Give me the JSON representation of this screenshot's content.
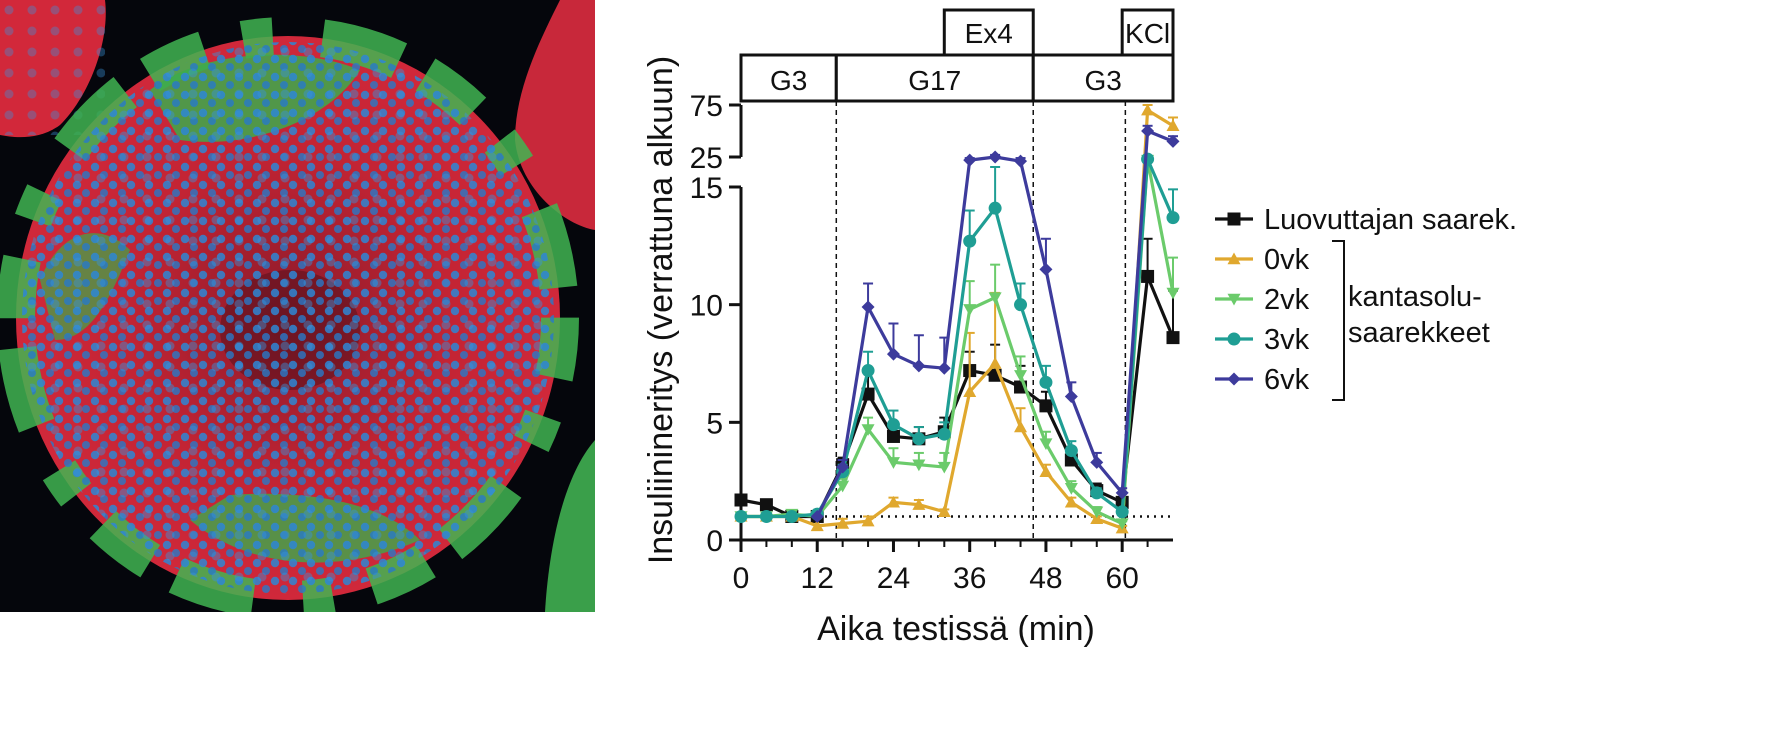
{
  "figure": {
    "left_image": {
      "description_name": "islet-immunofluorescence",
      "colors": {
        "background": "#05060c",
        "red": "#e8262e",
        "green": "#3fbf4e",
        "blue": "#2a7fd0"
      }
    }
  },
  "chart_data": {
    "type": "line",
    "title": "",
    "xlabel": "Aika testissä (min)",
    "ylabel": "Insuliinineritys (verrattuna alkuun)",
    "xlim": [
      0,
      68
    ],
    "xticks": [
      0,
      12,
      24,
      36,
      48,
      60
    ],
    "ylim_lower": [
      0,
      15
    ],
    "yticks_lower": [
      0,
      5,
      10,
      15
    ],
    "ylim_upper": [
      15,
      80
    ],
    "yticks_upper": [
      25,
      75
    ],
    "baseline": 1,
    "phases": [
      {
        "label": "G3",
        "start": 0,
        "end": 15
      },
      {
        "label": "G17",
        "start": 15,
        "end": 46
      },
      {
        "label": "G3",
        "start": 46,
        "end": 68
      }
    ],
    "top_boxes": [
      {
        "label": "Ex4",
        "start": 32,
        "end": 46
      },
      {
        "label": "KCl",
        "start": 60,
        "end": 68
      }
    ],
    "phase_lines_x": [
      15,
      46,
      60.5
    ],
    "legend": {
      "group_label_line1": "kantasolu-",
      "group_label_line2": "saarekkeet"
    },
    "series": [
      {
        "name": "Luovuttajan saarek.",
        "color": "#111111",
        "marker": "square",
        "x": [
          0,
          4,
          8,
          12,
          16,
          20,
          24,
          28,
          32,
          36,
          40,
          44,
          48,
          52,
          56,
          60,
          64,
          68
        ],
        "y": [
          1.7,
          1.5,
          1.0,
          1.0,
          3.2,
          6.2,
          4.4,
          4.3,
          4.6,
          7.2,
          7.0,
          6.5,
          5.7,
          3.4,
          2.1,
          1.6,
          11.2,
          8.6
        ],
        "err": [
          0,
          0,
          0,
          0,
          0.3,
          1.0,
          0.5,
          0.5,
          0.6,
          0.8,
          1.3,
          0.9,
          0.6,
          0.4,
          0.3,
          0.2,
          1.6,
          2.0
        ]
      },
      {
        "name": "0vk",
        "color": "#e0a82e",
        "marker": "triangle-up",
        "x": [
          0,
          4,
          8,
          12,
          16,
          20,
          24,
          28,
          32,
          36,
          40,
          44,
          48,
          52,
          56,
          60,
          64,
          68
        ],
        "y": [
          1.0,
          1.0,
          1.0,
          0.6,
          0.7,
          0.8,
          1.6,
          1.5,
          1.2,
          6.3,
          7.5,
          4.8,
          2.9,
          1.6,
          0.9,
          0.5,
          70,
          55
        ],
        "err": [
          0,
          0,
          0,
          0,
          0.2,
          0.2,
          0.2,
          0.2,
          0.1,
          2.5,
          3.0,
          0.8,
          0.3,
          0.2,
          0.1,
          0.1,
          5,
          8
        ]
      },
      {
        "name": "2vk",
        "color": "#6bcb6b",
        "marker": "triangle-down",
        "x": [
          0,
          4,
          8,
          12,
          16,
          20,
          24,
          28,
          32,
          36,
          40,
          44,
          48,
          52,
          56,
          60,
          64,
          68
        ],
        "y": [
          1.0,
          1.0,
          1.1,
          1.0,
          2.3,
          4.7,
          3.3,
          3.2,
          3.1,
          9.8,
          10.3,
          7.0,
          4.1,
          2.2,
          1.2,
          0.7,
          22,
          10.5
        ],
        "err": [
          0,
          0,
          0,
          0,
          0.3,
          0.5,
          0.6,
          0.5,
          0.6,
          1.2,
          1.4,
          0.8,
          0.5,
          0.3,
          0.2,
          0.1,
          3,
          1.5
        ]
      },
      {
        "name": "3vk",
        "color": "#1f9e94",
        "marker": "circle",
        "x": [
          0,
          4,
          8,
          12,
          16,
          20,
          24,
          28,
          32,
          36,
          40,
          44,
          48,
          52,
          56,
          60,
          64,
          68
        ],
        "y": [
          1.0,
          1.0,
          1.0,
          1.1,
          2.9,
          7.2,
          4.9,
          4.3,
          4.5,
          12.7,
          14.1,
          10.0,
          6.7,
          3.8,
          2.0,
          1.2,
          23,
          13.7
        ],
        "err": [
          0,
          0,
          0,
          0,
          0.3,
          0.8,
          0.6,
          0.5,
          0.5,
          1.3,
          1.3,
          0.9,
          0.7,
          0.4,
          0.2,
          0.1,
          3,
          1.2
        ]
      },
      {
        "name": "6vk",
        "color": "#3d3b9c",
        "marker": "diamond",
        "x": [
          12,
          16,
          20,
          24,
          28,
          32,
          36,
          40,
          44,
          48,
          52,
          56,
          60,
          64,
          68
        ],
        "y": [
          1.0,
          3.1,
          9.9,
          7.9,
          7.4,
          7.3,
          22,
          25,
          21,
          11.5,
          6.1,
          3.3,
          2.0,
          50,
          40
        ],
        "err": [
          0,
          0.3,
          1.0,
          1.3,
          1.3,
          1.3,
          2,
          2,
          3,
          1.3,
          0.6,
          0.4,
          0.2,
          5,
          5
        ]
      }
    ]
  }
}
